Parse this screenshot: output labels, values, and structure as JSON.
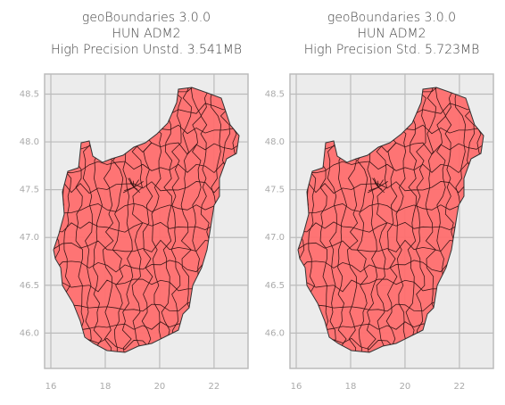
{
  "chart_data": [
    {
      "type": "map",
      "title": [
        "geoBoundaries 3.0.0",
        "HUN ADM2",
        "High Precision Unstd. 3.541MB"
      ],
      "xlim": [
        15.77,
        23.25
      ],
      "ylim": [
        45.63,
        48.71
      ],
      "xticks": [
        16,
        18,
        20,
        22
      ],
      "yticks": [
        {
          "value": 46,
          "label": "46.0"
        },
        46.5,
        {
          "value": 47,
          "label": "47.0"
        },
        47.5,
        {
          "value": 48,
          "label": "48.0"
        },
        48.5
      ],
      "color": "#ff6e6e",
      "grid": true
    },
    {
      "type": "map",
      "title": [
        "geoBoundaries 3.0.0",
        "HUN ADM2",
        "High Precision Std. 5.723MB"
      ],
      "xlim": [
        15.77,
        23.25
      ],
      "ylim": [
        45.63,
        48.71
      ],
      "xticks": [
        16,
        18,
        20,
        22
      ],
      "yticks": [
        {
          "value": 46,
          "label": "46.0"
        },
        46.5,
        {
          "value": 47,
          "label": "47.0"
        },
        47.5,
        {
          "value": 48,
          "label": "48.0"
        },
        48.5
      ],
      "color": "#ff6e6e",
      "grid": true
    }
  ]
}
